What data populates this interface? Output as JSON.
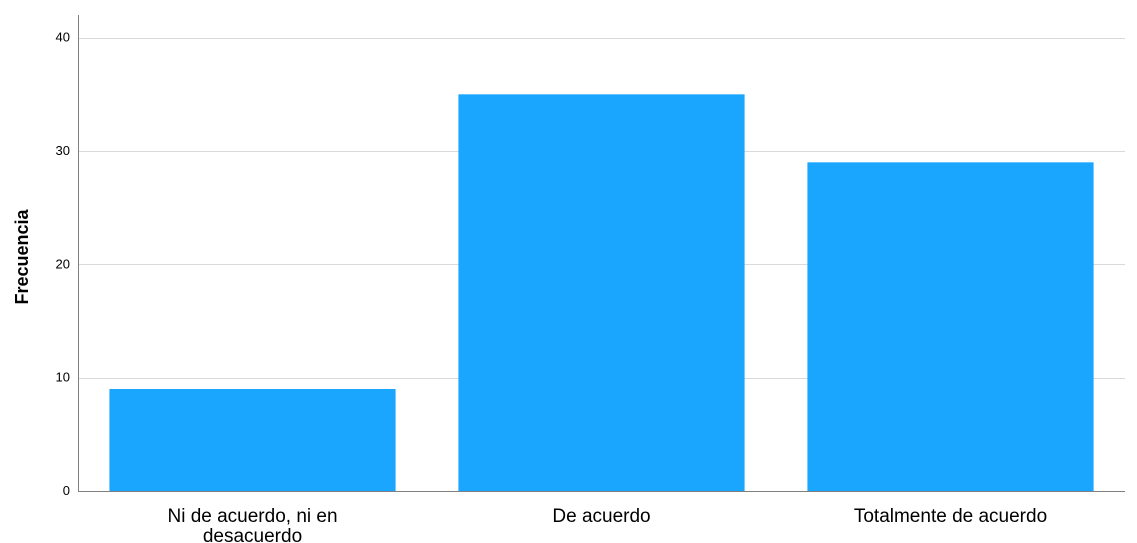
{
  "chart_data": {
    "type": "bar",
    "categories": [
      [
        "Ni de acuerdo, ni en",
        "desacuerdo"
      ],
      [
        "De acuerdo"
      ],
      [
        "Totalmente de acuerdo"
      ]
    ],
    "values": [
      9,
      35,
      29
    ],
    "title": "",
    "xlabel": "",
    "ylabel": "Frecuencia",
    "ylim": [
      0,
      42
    ],
    "yticks": [
      0,
      10,
      20,
      30,
      40
    ],
    "grid": true,
    "legend": "none",
    "colors": {
      "bar": "#1aa5ff",
      "grid": "#d9d9d9",
      "axis": "#808080"
    }
  }
}
